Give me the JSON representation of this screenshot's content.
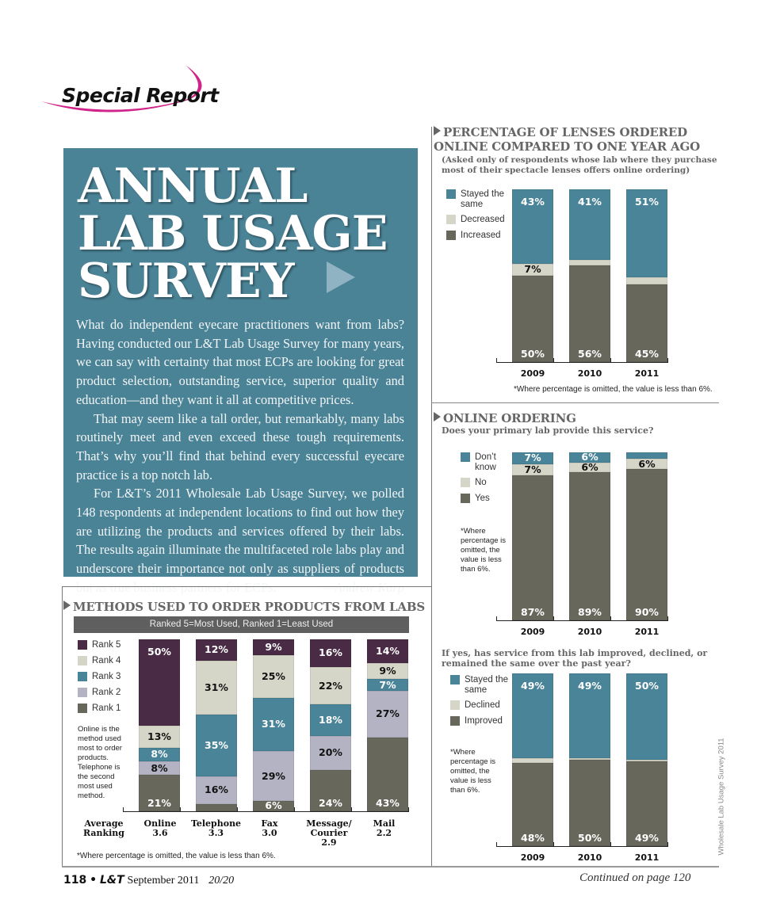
{
  "header": {
    "section_label": "Special Report"
  },
  "intro": {
    "headline_lines": [
      "ANNUAL",
      "LAB USAGE",
      "SURVEY"
    ],
    "p1": "What do independent eyecare practitioners want from labs? Having conducted our L&T Lab Usage Survey for many years, we can say with certainty that most ECPs are looking for great product selection, outstanding service, superior quality and education—and they want it all at competitive prices.",
    "p2": "That may seem like a tall order, but remarkably, many labs routinely meet and even exceed these tough requirements. That’s why you’ll find that behind every successful eyecare practice is a top notch lab.",
    "p3": "For L&T’s 2011 Wholesale Lab Usage Survey, we polled 148 respondents at independent locations to find out how they are utilizing the products and services offered by their labs. The results again illuminate the multifaceted role labs play and underscore their importance not only as suppliers of products but as true business partners for ECPs.",
    "byline": "—Andrew Karp"
  },
  "colors": {
    "teal": "#4a8499",
    "beige": "#d6d6c8",
    "darkgrey": "#67675c",
    "plum": "#4a2b45",
    "lavender": "#b3b3c3",
    "box_bg": "#4a8296"
  },
  "omitted_note": "*Where percentage is omitted, the value is less than 6%.",
  "omitted_note_short": "*Where percentage is omitted, the value is less than 6%.",
  "chart_data": [
    {
      "id": "lenses-online",
      "type": "bar",
      "stacked": true,
      "title": "PERCENTAGE OF LENSES ORDERED ONLINE COMPARED TO ONE YEAR AGO",
      "subtitle": "(Asked only of respondents whose lab where they purchase most of their spectacle lenses offers online ordering)",
      "categories": [
        "2009",
        "2010",
        "2011"
      ],
      "legend": [
        "Stayed the same",
        "Decreased",
        "Increased"
      ],
      "series": [
        {
          "name": "Increased",
          "color": "#67675c",
          "values": [
            50,
            56,
            45
          ],
          "labels": [
            "50%",
            "56%",
            "45%"
          ]
        },
        {
          "name": "Decreased",
          "color": "#d6d6c8",
          "values": [
            7,
            3,
            4
          ],
          "labels": [
            "7%",
            "",
            ""
          ]
        },
        {
          "name": "Stayed the same",
          "color": "#4a8499",
          "values": [
            43,
            41,
            51
          ],
          "labels": [
            "43%",
            "41%",
            "51%"
          ]
        }
      ],
      "ylim": [
        0,
        100
      ],
      "note": "*Where percentage is omitted, the value is less than 6%."
    },
    {
      "id": "online-ordering",
      "type": "bar",
      "stacked": true,
      "title": "ONLINE ORDERING",
      "subtitle": "Does your primary lab provide this service?",
      "categories": [
        "2009",
        "2010",
        "2011"
      ],
      "legend": [
        "Don’t know",
        "No",
        "Yes"
      ],
      "series": [
        {
          "name": "Yes",
          "color": "#67675c",
          "values": [
            87,
            89,
            90
          ],
          "labels": [
            "87%",
            "89%",
            "90%"
          ]
        },
        {
          "name": "No",
          "color": "#d6d6c8",
          "values": [
            7,
            6,
            6
          ],
          "labels": [
            "7%",
            "6%",
            "6%"
          ]
        },
        {
          "name": "Don’t know",
          "color": "#4a8499",
          "values": [
            7,
            6,
            4
          ],
          "labels": [
            "7%",
            "6%",
            ""
          ]
        }
      ],
      "ylim": [
        0,
        100
      ],
      "note": "*Where percentage is omitted, the value is less than 6%."
    },
    {
      "id": "service-change",
      "type": "bar",
      "stacked": true,
      "title": "",
      "subtitle": "If yes, has service from this lab improved, declined, or remained the same over the past year?",
      "categories": [
        "2009",
        "2010",
        "2011"
      ],
      "legend": [
        "Stayed the same",
        "Declined",
        "Improved"
      ],
      "series": [
        {
          "name": "Improved",
          "color": "#67675c",
          "values": [
            48,
            50,
            49
          ],
          "labels": [
            "48%",
            "50%",
            "49%"
          ]
        },
        {
          "name": "Declined",
          "color": "#d6d6c8",
          "values": [
            3,
            1,
            1
          ],
          "labels": [
            "",
            "",
            ""
          ]
        },
        {
          "name": "Stayed the same",
          "color": "#4a8499",
          "values": [
            49,
            49,
            50
          ],
          "labels": [
            "49%",
            "49%",
            "50%"
          ]
        }
      ],
      "ylim": [
        0,
        100
      ],
      "note": "*Where percentage is omitted, the value is less than 6%."
    },
    {
      "id": "order-methods",
      "type": "bar",
      "stacked": true,
      "title": "METHODS USED TO ORDER PRODUCTS FROM LABS",
      "subtitle": "Ranked 5=Most Used, Ranked 1=Least Used",
      "categories": [
        "Online",
        "Telephone",
        "Fax",
        "Message/Courier",
        "Mail"
      ],
      "legend": [
        "Rank 5",
        "Rank 4",
        "Rank 3",
        "Rank 2",
        "Rank 1"
      ],
      "series": [
        {
          "name": "Rank 1",
          "color": "#67675c",
          "values": [
            21,
            4,
            6,
            24,
            43
          ],
          "labels": [
            "21%",
            "",
            "6%",
            "24%",
            "43%"
          ],
          "light_label": true
        },
        {
          "name": "Rank 2",
          "color": "#b3b3c3",
          "values": [
            8,
            16,
            29,
            20,
            27
          ],
          "labels": [
            "8%",
            "16%",
            "29%",
            "20%",
            "27%"
          ],
          "light_label": false
        },
        {
          "name": "Rank 3",
          "color": "#4a8499",
          "values": [
            8,
            35,
            31,
            18,
            7
          ],
          "labels": [
            "8%",
            "35%",
            "31%",
            "18%",
            "7%"
          ],
          "light_label": true
        },
        {
          "name": "Rank 4",
          "color": "#d6d6c8",
          "values": [
            13,
            31,
            25,
            22,
            9
          ],
          "labels": [
            "13%",
            "31%",
            "25%",
            "22%",
            "9%"
          ],
          "light_label": false
        },
        {
          "name": "Rank 5",
          "color": "#4a2b45",
          "values": [
            50,
            12,
            9,
            16,
            14
          ],
          "labels": [
            "50%",
            "12%",
            "9%",
            "16%",
            "14%"
          ],
          "light_label": true
        }
      ],
      "ylim": [
        0,
        100
      ],
      "average_ranking_label": "Average Ranking",
      "average_ranking": [
        {
          "method": "Online",
          "value": "3.6"
        },
        {
          "method": "Telephone",
          "value": "3.3"
        },
        {
          "method": "Fax",
          "value": "3.0"
        },
        {
          "method": "Message/ Courier",
          "value": "2.9"
        },
        {
          "method": "Mail",
          "value": "2.2"
        }
      ],
      "annotation": "Online is the method used most to order products. Telephone is the second most used method.",
      "note": "*Where percentage is omitted, the value is less than 6%."
    }
  ],
  "right_notes": {
    "online_ordering_note": "*Where percentage is omitted, the value is less than 6%.",
    "service_note": "*Where percentage is omitted, the value is less than 6%."
  },
  "footer": {
    "page_number": "118",
    "bullet": "•",
    "magazine": "L&T",
    "date": "September 2011",
    "supplement": "20/20",
    "continued": "Continued on page 120",
    "side_caption": "Wholesale Lab Usage Survey 2011"
  }
}
